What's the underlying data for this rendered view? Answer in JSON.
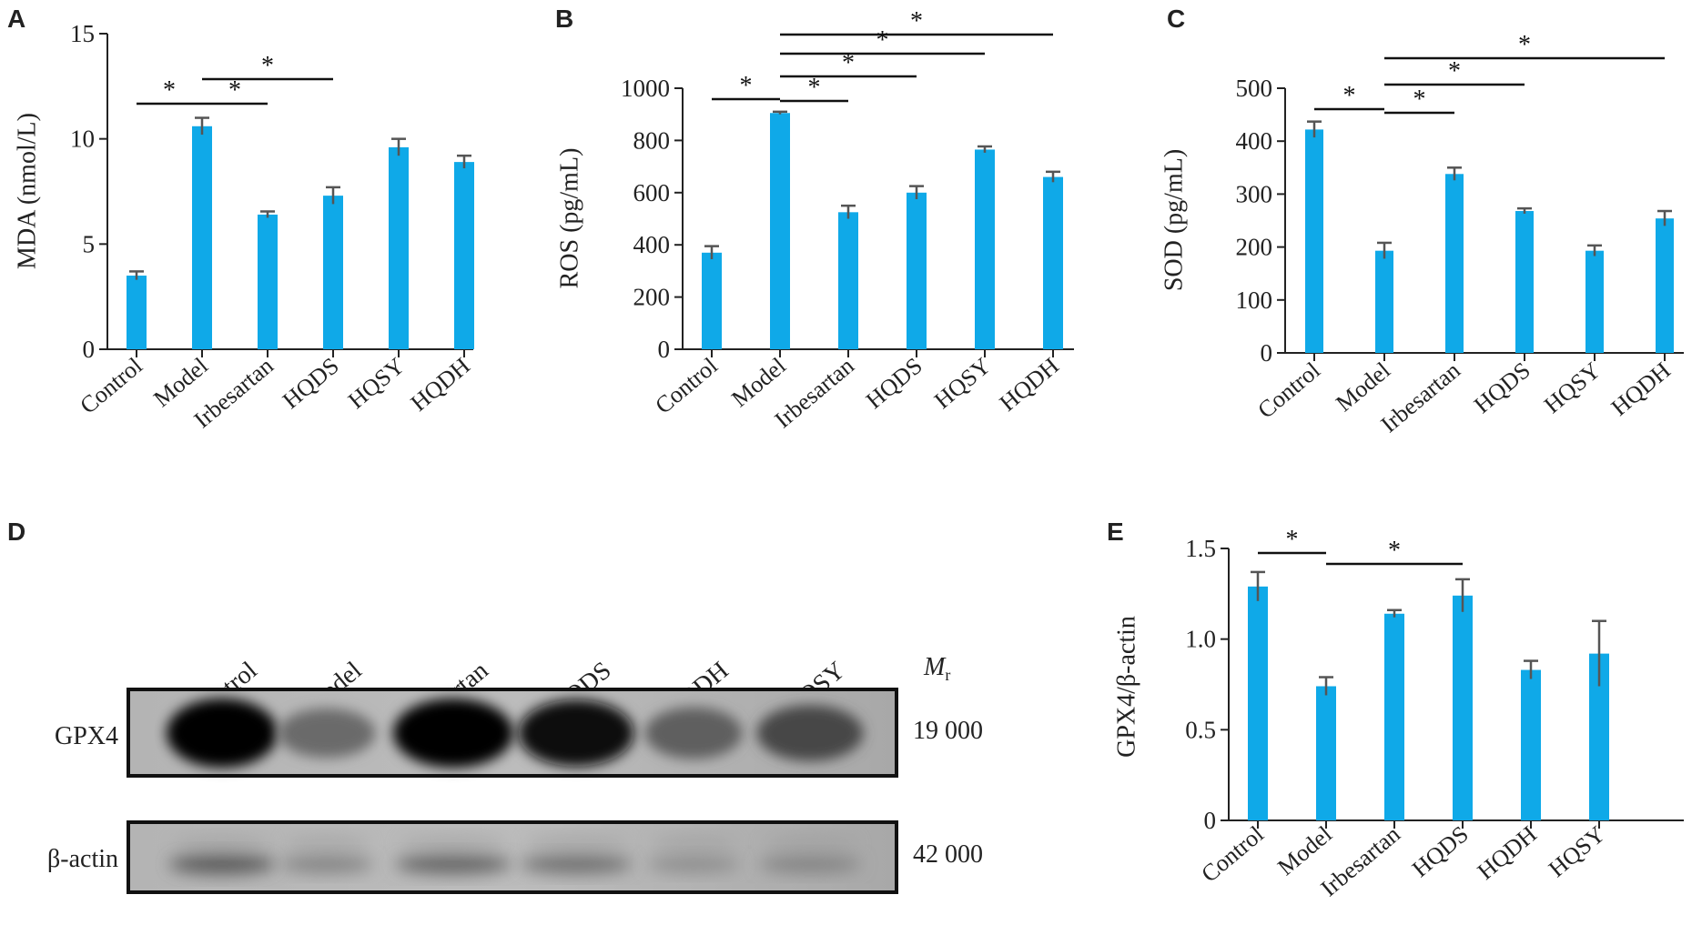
{
  "colors": {
    "bar": "#0FA9E8",
    "axis": "#222222",
    "err": "#555555",
    "text": "#222222"
  },
  "panels": {
    "A": "A",
    "B": "B",
    "C": "C",
    "D": "D",
    "E": "E"
  },
  "chart_data": [
    {
      "panel": "A",
      "type": "bar",
      "categories": [
        "Control",
        "Model",
        "Irbesartan",
        "HQDS",
        "HQSY",
        "HQDH"
      ],
      "values": [
        3.5,
        10.6,
        6.4,
        7.3,
        9.6,
        8.9
      ],
      "errors": [
        0.2,
        0.4,
        0.15,
        0.4,
        0.4,
        0.3
      ],
      "ylabel": "MDA (nmol/L)",
      "ylim": [
        0,
        15
      ],
      "ticks": [
        0,
        5,
        10,
        15
      ],
      "significance": [
        {
          "from": 0,
          "to": 1,
          "label": "*"
        },
        {
          "from": 1,
          "to": 2,
          "label": "*"
        },
        {
          "from": 1,
          "to": 3,
          "label": "*"
        }
      ]
    },
    {
      "panel": "B",
      "type": "bar",
      "categories": [
        "Control",
        "Model",
        "Irbesartan",
        "HQDS",
        "HQSY",
        "HQDH"
      ],
      "values": [
        370,
        905,
        525,
        600,
        765,
        660
      ],
      "errors": [
        25,
        5,
        25,
        25,
        12,
        20
      ],
      "ylabel": "ROS (pg/mL)",
      "ylim": [
        0,
        1000
      ],
      "ticks": [
        0,
        200,
        400,
        600,
        800,
        1000
      ],
      "significance": [
        {
          "from": 0,
          "to": 1,
          "label": "*"
        },
        {
          "from": 1,
          "to": 2,
          "label": "*"
        },
        {
          "from": 1,
          "to": 3,
          "label": "*"
        },
        {
          "from": 1,
          "to": 4,
          "label": "*"
        },
        {
          "from": 1,
          "to": 5,
          "label": "*"
        }
      ]
    },
    {
      "panel": "C",
      "type": "bar",
      "categories": [
        "Control",
        "Model",
        "Irbesartan",
        "HQDS",
        "HQSY",
        "HQDH"
      ],
      "values": [
        422,
        193,
        338,
        268,
        193,
        254
      ],
      "errors": [
        15,
        15,
        12,
        5,
        10,
        14
      ],
      "ylabel": "SOD (pg/mL)",
      "ylim": [
        0,
        500
      ],
      "ticks": [
        0,
        100,
        200,
        300,
        400,
        500
      ],
      "significance": [
        {
          "from": 0,
          "to": 1,
          "label": "*"
        },
        {
          "from": 1,
          "to": 2,
          "label": "*"
        },
        {
          "from": 1,
          "to": 3,
          "label": "*"
        },
        {
          "from": 1,
          "to": 5,
          "label": "*"
        }
      ]
    },
    {
      "panel": "E",
      "type": "bar",
      "categories": [
        "Control",
        "Model",
        "Irbesartan",
        "HQDS",
        "HQDH",
        "HQSY"
      ],
      "values": [
        1.29,
        0.74,
        1.14,
        1.24,
        0.83,
        0.92
      ],
      "errors": [
        0.08,
        0.05,
        0.02,
        0.09,
        0.05,
        0.18
      ],
      "ylabel": "GPX4/β-actin",
      "ylim": [
        0,
        1.5
      ],
      "ticks": [
        "0",
        "0.5",
        "1.0",
        "1.5"
      ],
      "tickValues": [
        0,
        0.5,
        1.0,
        1.5
      ],
      "significance": [
        {
          "from": 0,
          "to": 1,
          "label": "*"
        },
        {
          "from": 1,
          "to": 3,
          "label": "*"
        }
      ]
    }
  ],
  "blot": {
    "lanes": [
      "Control",
      "Model",
      "Irbesartan",
      "HQDS",
      "HQDH",
      "HQSY"
    ],
    "mr_label": "M",
    "mr_sub": "r",
    "rows": [
      {
        "label": "GPX4",
        "mr": "19 000",
        "intensity": [
          1.0,
          0.55,
          1.0,
          0.95,
          0.6,
          0.7
        ]
      },
      {
        "label": "β-actin",
        "mr": "42 000",
        "intensity": [
          0.65,
          0.45,
          0.6,
          0.55,
          0.4,
          0.45
        ]
      }
    ]
  }
}
